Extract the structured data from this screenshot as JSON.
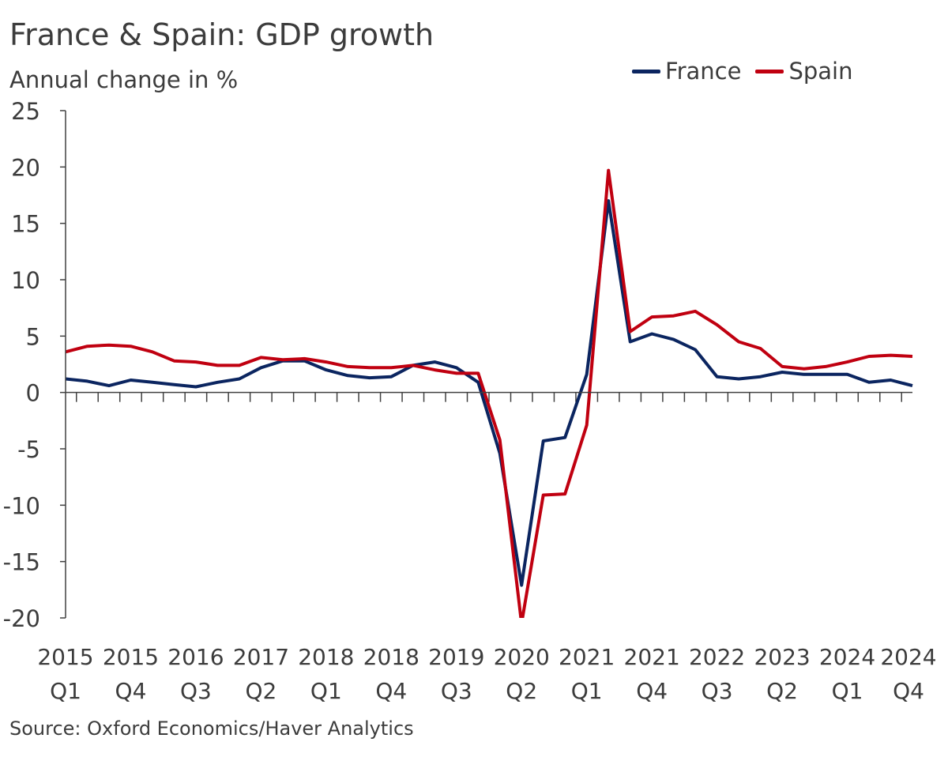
{
  "colors": {
    "France": "#0b2560",
    "Spain": "#c00010",
    "axis": "#404040"
  },
  "chart_data": {
    "type": "line",
    "title": "France & Spain: GDP growth",
    "ylabel": "Annual change in %",
    "source": "Source: Oxford Economics/Haver Analytics",
    "ylim": [
      -20,
      25
    ],
    "yticks": [
      25,
      20,
      15,
      10,
      5,
      0,
      -5,
      -10,
      -15,
      -20
    ],
    "legend_position": "top-right",
    "categories": [
      "2015 Q1",
      "2015 Q2",
      "2015 Q3",
      "2015 Q4",
      "2016 Q1",
      "2016 Q2",
      "2016 Q3",
      "2016 Q4",
      "2017 Q1",
      "2017 Q2",
      "2017 Q3",
      "2017 Q4",
      "2018 Q1",
      "2018 Q2",
      "2018 Q3",
      "2018 Q4",
      "2019 Q1",
      "2019 Q2",
      "2019 Q3",
      "2019 Q4",
      "2020 Q1",
      "2020 Q2",
      "2020 Q3",
      "2020 Q4",
      "2021 Q1",
      "2021 Q2",
      "2021 Q3",
      "2021 Q4",
      "2022 Q1",
      "2022 Q2",
      "2022 Q3",
      "2022 Q4",
      "2023 Q1",
      "2023 Q2",
      "2023 Q3",
      "2023 Q4",
      "2024 Q1",
      "2024 Q2",
      "2024 Q3",
      "2024 Q4"
    ],
    "x_tick_labels": [
      {
        "index": 0,
        "year": "2015",
        "quarter": "Q1"
      },
      {
        "index": 3,
        "year": "2015",
        "quarter": "Q4"
      },
      {
        "index": 6,
        "year": "2016",
        "quarter": "Q3"
      },
      {
        "index": 9,
        "year": "2017",
        "quarter": "Q2"
      },
      {
        "index": 12,
        "year": "2018",
        "quarter": "Q1"
      },
      {
        "index": 15,
        "year": "2018",
        "quarter": "Q4"
      },
      {
        "index": 18,
        "year": "2019",
        "quarter": "Q3"
      },
      {
        "index": 21,
        "year": "2020",
        "quarter": "Q2"
      },
      {
        "index": 24,
        "year": "2021",
        "quarter": "Q1"
      },
      {
        "index": 27,
        "year": "2021",
        "quarter": "Q4"
      },
      {
        "index": 30,
        "year": "2022",
        "quarter": "Q3"
      },
      {
        "index": 33,
        "year": "2023",
        "quarter": "Q2"
      },
      {
        "index": 36,
        "year": "2024",
        "quarter": "Q1"
      },
      {
        "index": 39,
        "year": "2024",
        "quarter": "Q4"
      }
    ],
    "series": [
      {
        "name": "France",
        "values": [
          1.2,
          1.0,
          0.6,
          1.1,
          0.9,
          0.7,
          0.5,
          0.9,
          1.2,
          2.2,
          2.8,
          2.8,
          2.0,
          1.5,
          1.3,
          1.4,
          2.4,
          2.7,
          2.2,
          0.9,
          -5.4,
          -17.1,
          -4.3,
          -4.0,
          1.6,
          17.0,
          4.5,
          5.2,
          4.7,
          3.8,
          1.4,
          1.2,
          1.4,
          1.8,
          1.6,
          1.6,
          1.6,
          0.9,
          1.1,
          0.6
        ]
      },
      {
        "name": "Spain",
        "values": [
          3.6,
          4.1,
          4.2,
          4.1,
          3.6,
          2.8,
          2.7,
          2.4,
          2.4,
          3.1,
          2.9,
          3.0,
          2.7,
          2.3,
          2.2,
          2.2,
          2.4,
          2.0,
          1.7,
          1.7,
          -4.2,
          -20.5,
          -9.1,
          -9.0,
          -2.9,
          19.7,
          5.4,
          6.7,
          6.8,
          7.2,
          6.0,
          4.5,
          3.9,
          2.3,
          2.1,
          2.3,
          2.7,
          3.2,
          3.3,
          3.2
        ]
      }
    ]
  }
}
